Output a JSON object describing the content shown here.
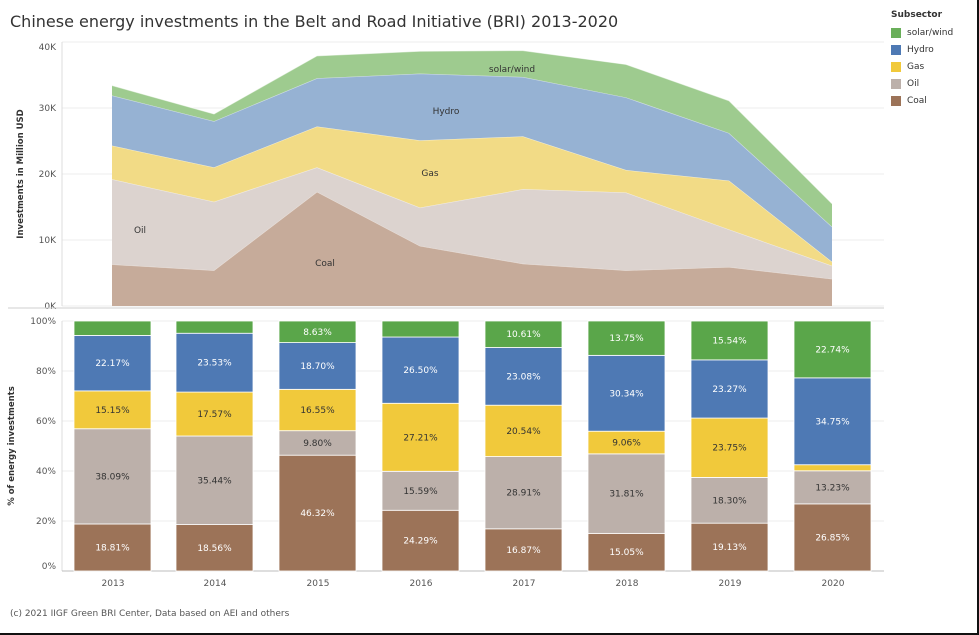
{
  "title": "Chinese energy investments in the Belt and Road Initiative (BRI) 2013-2020",
  "footer": "(c) 2021 IIGF Green BRI Center, Data based on AEI and others",
  "legend": {
    "title": "Subsector",
    "items": [
      {
        "label": "solar/wind",
        "color": "#6aaf5a"
      },
      {
        "label": "Hydro",
        "color": "#4e79b4"
      },
      {
        "label": "Gas",
        "color": "#f1c93b"
      },
      {
        "label": "Oil",
        "color": "#bcb0aa"
      },
      {
        "label": "Coal",
        "color": "#9c7358"
      }
    ]
  },
  "chart_data": [
    {
      "type": "area",
      "stacked": true,
      "ylabel": "Investments in Million USD",
      "ylim": [
        0,
        40000
      ],
      "yticks": [
        "0K",
        "10K",
        "20K",
        "30K",
        "40K"
      ],
      "ytick_values": [
        0,
        10000,
        20000,
        30000,
        40000
      ],
      "x": [
        "2013",
        "2014",
        "2015",
        "2016",
        "2017",
        "2018",
        "2019",
        "2020"
      ],
      "series": [
        {
          "name": "Coal",
          "color": "#c6ab9a",
          "values": [
            6300,
            5400,
            17300,
            9100,
            6400,
            5400,
            5900,
            4100
          ]
        },
        {
          "name": "Oil",
          "color": "#dcd3cf",
          "values": [
            12900,
            10400,
            3700,
            5800,
            11300,
            11800,
            5700,
            2000
          ]
        },
        {
          "name": "Gas",
          "color": "#f2db86",
          "values": [
            5100,
            5200,
            6200,
            10200,
            8000,
            3400,
            7400,
            600
          ]
        },
        {
          "name": "Hydro",
          "color": "#96b2d3",
          "values": [
            7600,
            7000,
            7300,
            10100,
            9000,
            11000,
            7200,
            5300
          ]
        },
        {
          "name": "solar/wind",
          "color": "#9ecb8f",
          "values": [
            1500,
            1100,
            3400,
            3400,
            4000,
            5000,
            4900,
            3500
          ]
        }
      ],
      "area_labels": [
        "solar/wind",
        "Hydro",
        "Gas",
        "Oil",
        "Coal"
      ]
    },
    {
      "type": "bar",
      "stacked": true,
      "normalized": true,
      "ylabel": "% of energy investments",
      "ylim": [
        0,
        100
      ],
      "yticks": [
        "0%",
        "20%",
        "40%",
        "60%",
        "80%",
        "100%"
      ],
      "ytick_values": [
        0,
        20,
        40,
        60,
        80,
        100
      ],
      "categories": [
        "2013",
        "2014",
        "2015",
        "2016",
        "2017",
        "2018",
        "2019",
        "2020"
      ],
      "series": [
        {
          "name": "Coal",
          "color": "#9c7358",
          "values": [
            18.81,
            18.56,
            46.32,
            24.29,
            16.87,
            15.05,
            19.13,
            26.85
          ],
          "labels": [
            "18.81%",
            "18.56%",
            "46.32%",
            "24.29%",
            "16.87%",
            "15.05%",
            "19.13%",
            "26.85%"
          ]
        },
        {
          "name": "Oil",
          "color": "#bcb0aa",
          "values": [
            38.09,
            35.44,
            9.8,
            15.59,
            28.91,
            31.81,
            18.3,
            13.23
          ],
          "labels": [
            "38.09%",
            "35.44%",
            "9.80%",
            "15.59%",
            "28.91%",
            "31.81%",
            "18.30%",
            "13.23%"
          ]
        },
        {
          "name": "Gas",
          "color": "#f1c93b",
          "values": [
            15.15,
            17.57,
            16.55,
            27.21,
            20.54,
            9.06,
            23.75,
            2.43
          ],
          "labels": [
            "15.15%",
            "17.57%",
            "16.55%",
            "27.21%",
            "20.54%",
            "9.06%",
            "23.75%",
            ""
          ]
        },
        {
          "name": "Hydro",
          "color": "#4e79b4",
          "values": [
            22.17,
            23.53,
            18.7,
            26.5,
            23.08,
            30.34,
            23.27,
            34.75
          ],
          "labels": [
            "22.17%",
            "23.53%",
            "18.70%",
            "26.50%",
            "23.08%",
            "30.34%",
            "23.27%",
            "34.75%"
          ]
        },
        {
          "name": "solar/wind",
          "color": "#5aa64a",
          "values": [
            5.78,
            4.9,
            8.63,
            6.41,
            10.61,
            13.75,
            15.54,
            22.74
          ],
          "labels": [
            "",
            "",
            "8.63%",
            "",
            "10.61%",
            "13.75%",
            "15.54%",
            "22.74%"
          ]
        }
      ]
    }
  ]
}
